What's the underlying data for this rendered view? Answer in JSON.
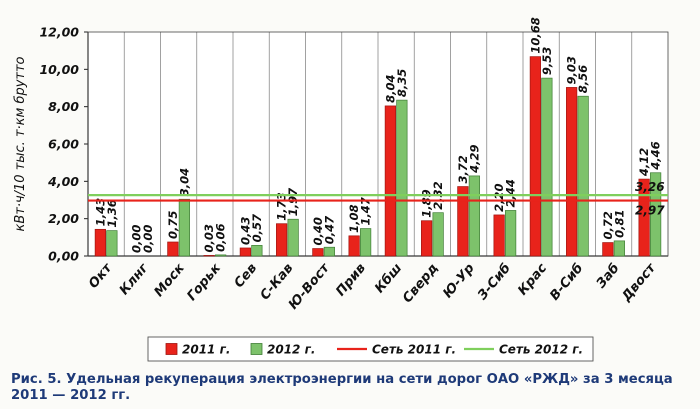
{
  "caption": "Рис. 5. Удельная рекуперация электроэнергии на сети дорог ОАО «РЖД» за 3 месяца 2011 — 2012 гг.",
  "chart_data": {
    "type": "bar",
    "title": "",
    "xlabel": "",
    "ylabel": "кВт·ч/10 тыс. т·км брутто",
    "ylim": [
      0,
      12
    ],
    "yticks": [
      "0,00",
      "2,00",
      "4,00",
      "6,00",
      "8,00",
      "10,00",
      "12,00"
    ],
    "grid": "vertical lines between categories",
    "legend_position": "bottom",
    "categories": [
      "Окт",
      "Клнг",
      "Моск",
      "Горьк",
      "Сев",
      "С-Кав",
      "Ю-Вост",
      "Прив",
      "Кбш",
      "Сверд",
      "Ю-Ур",
      "З-Сиб",
      "Крас",
      "В-Сиб",
      "Заб",
      "Двост"
    ],
    "series": [
      {
        "name": "2011 г.",
        "color": "#e8231b",
        "values": [
          1.43,
          0.0,
          0.75,
          0.03,
          0.43,
          1.73,
          0.4,
          1.08,
          8.04,
          1.89,
          3.72,
          2.2,
          10.68,
          9.03,
          0.72,
          4.12
        ],
        "labels": [
          "1,43",
          "0,00",
          "0,75",
          "0,03",
          "0,43",
          "1,73",
          "0,40",
          "1,08",
          "8,04",
          "1,89",
          "3,72",
          "2,20",
          "10,68",
          "9,03",
          "0,72",
          "4,12"
        ]
      },
      {
        "name": "2012 г.",
        "color": "#7dc26b",
        "values": [
          1.36,
          0.0,
          3.04,
          0.06,
          0.57,
          1.97,
          0.47,
          1.47,
          8.35,
          2.32,
          4.29,
          2.44,
          9.53,
          8.56,
          0.81,
          4.46
        ],
        "labels": [
          "1,36",
          "0,00",
          "3,04",
          "0,06",
          "0,57",
          "1,97",
          "0,47",
          "1,47",
          "8,35",
          "2,32",
          "4,29",
          "2,44",
          "9,53",
          "8,56",
          "0,81",
          "4,46"
        ]
      }
    ],
    "reference_lines": [
      {
        "name": "Сеть 2011 г.",
        "value": 2.97,
        "label": "2,97",
        "color": "#e8231b"
      },
      {
        "name": "Сеть 2012 г.",
        "value": 3.26,
        "label": "3,26",
        "color": "#7fcf5c"
      }
    ]
  }
}
